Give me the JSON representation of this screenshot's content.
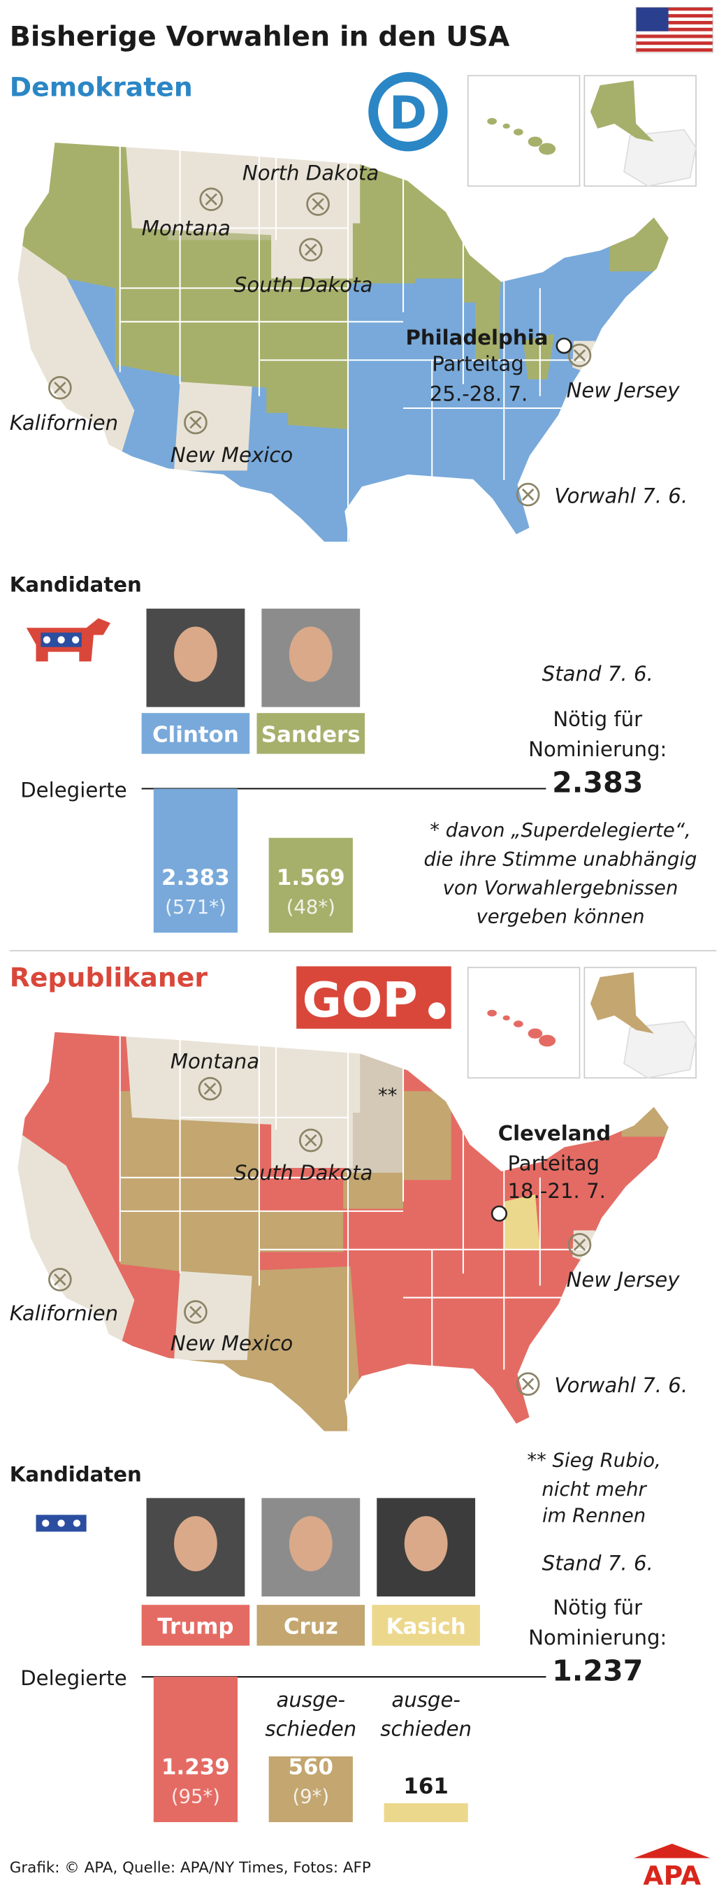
{
  "title": "Bisherige Vorwahlen in den USA",
  "footer": "Grafik: © APA, Quelle: APA/NY Times, Fotos: AFP",
  "logo": "APA",
  "sections": [
    {
      "heading": "Demokraten",
      "logo": "D",
      "map_labels": [
        "North Dakota",
        "Montana",
        "South Dakota",
        "Kalifornien",
        "New Mexico",
        "New Jersey"
      ],
      "city": "Philadelphia",
      "convention": [
        "Parteitag",
        "25.-28. 7."
      ],
      "legend": "Vorwahl 7. 6."
    },
    {
      "heading": "Republikaner",
      "logo": "GOP",
      "map_labels": [
        "Montana",
        "South Dakota",
        "Kalifornien",
        "New Mexico",
        "New Jersey"
      ],
      "marker": "**",
      "city": "Cleveland",
      "convention": [
        "Parteitag",
        "18.-21. 7."
      ],
      "legend": "Vorwahl 7. 6."
    }
  ],
  "chart_data": [
    {
      "type": "bar",
      "heading": "Kandidaten",
      "axis_label": "Delegierte",
      "stand": "Stand 7. 6.",
      "threshold_text": [
        "Nötig für",
        "Nominierung:"
      ],
      "threshold": 2383,
      "threshold_label": "2.383",
      "categories": [
        "Clinton",
        "Sanders"
      ],
      "colors": [
        "#78a9da",
        "#a7b06b"
      ],
      "values": [
        2383,
        1569
      ],
      "value_labels": [
        "2.383",
        "1.569"
      ],
      "super_values": [
        571,
        48
      ],
      "super_labels": [
        "(571*)",
        "(48*)"
      ],
      "ylim": [
        0,
        2383
      ],
      "footnote": [
        "* davon „Superdelegierte“,",
        "die ihre Stimme unabhängig",
        "von Vorwahlergebnissen",
        "vergeben können"
      ]
    },
    {
      "type": "bar",
      "heading": "Kandidaten",
      "axis_label": "Delegierte",
      "stand": "Stand 7. 6.",
      "threshold_text": [
        "Nötig für",
        "Nominierung:"
      ],
      "threshold": 1237,
      "threshold_label": "1.237",
      "categories": [
        "Trump",
        "Cruz",
        "Kasich"
      ],
      "colors": [
        "#e46b63",
        "#c3a670",
        "#ecd88c"
      ],
      "values": [
        1239,
        560,
        161
      ],
      "value_labels": [
        "1.239",
        "560",
        "161"
      ],
      "super_values": [
        95,
        9,
        null
      ],
      "super_labels": [
        "(95*)",
        "(9*)",
        null
      ],
      "notes": [
        null,
        [
          "ausge-",
          "schieden"
        ],
        [
          "ausge-",
          "schieden"
        ]
      ],
      "ylim": [
        0,
        1237
      ],
      "footnote": [
        "** Sieg Rubio,",
        "nicht mehr",
        "im Rennen"
      ]
    }
  ]
}
